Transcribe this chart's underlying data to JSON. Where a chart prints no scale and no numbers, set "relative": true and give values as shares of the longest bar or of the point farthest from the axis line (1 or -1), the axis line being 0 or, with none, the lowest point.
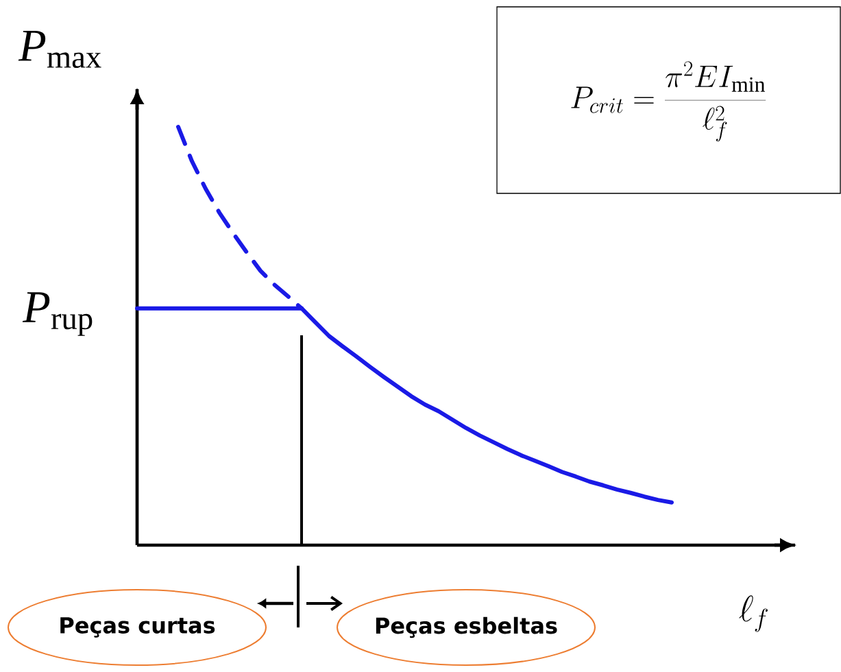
{
  "chart_data": {
    "type": "line",
    "relative": true,
    "categories": [
      null,
      null,
      null,
      null,
      null,
      null,
      null,
      null,
      null,
      null,
      null,
      null,
      null,
      null,
      null,
      null,
      null,
      null,
      null,
      null,
      null,
      null,
      null,
      null,
      null,
      null,
      null,
      null,
      null,
      null,
      null,
      null,
      null,
      null,
      null,
      null,
      null,
      null,
      null,
      null,
      null,
      null,
      null,
      null,
      null,
      null,
      null,
      null,
      null
    ],
    "ylabel": "*P*$_{max}$",
    "series": [
      {
        "color": "#1a1ae6",
        "line_style": "dashed",
        "values": [
          null,
          null,
          null,
          1,
          0.918,
          0.852,
          0.795,
          0.746,
          0.7,
          0.656,
          0.623,
          0.595,
          0.566,
          null,
          null,
          null,
          null,
          null,
          null,
          null,
          null,
          null,
          null,
          null,
          null,
          null,
          null,
          null,
          null,
          null,
          null,
          null,
          null,
          null,
          null,
          null,
          null,
          null,
          null,
          null,
          null,
          null,
          null,
          null,
          null,
          null,
          null,
          null,
          null
        ]
      },
      {
        "color": "#1a1ae6",
        "line_style": "solid",
        "values": [
          0.566,
          0.566,
          0.566,
          0.566,
          0.566,
          0.566,
          0.566,
          0.566,
          0.566,
          0.566,
          0.566,
          0.566,
          0.566,
          null,
          null,
          null,
          null,
          null,
          null,
          null,
          null,
          null,
          null,
          null,
          null,
          null,
          null,
          null,
          null,
          null,
          null,
          null,
          null,
          null,
          null,
          null,
          null,
          null,
          null,
          null,
          null,
          null,
          null,
          null,
          null,
          null,
          null,
          null,
          null
        ]
      },
      {
        "color": "#1a1ae6",
        "line_style": "solid",
        "values": [
          null,
          null,
          null,
          null,
          null,
          null,
          null,
          null,
          null,
          null,
          null,
          null,
          0.566,
          0.533,
          0.5,
          0.475,
          0.451,
          0.426,
          0.402,
          0.379,
          0.356,
          0.336,
          0.32,
          0.3,
          0.28,
          0.262,
          0.246,
          0.23,
          0.215,
          0.202,
          0.189,
          0.175,
          0.164,
          0.152,
          0.143,
          0.133,
          0.125,
          0.116,
          0.108,
          0.102,
          null,
          null,
          null,
          null,
          null,
          null,
          null,
          null,
          null
        ]
      }
    ],
    "annotations": [
      "P_{crit} = \\frac{\\pi^2 EI_{\\min}}{\\ell_f^2}",
      "\\ell_f",
      "*P*$_{rup}$",
      "Peças curtas",
      "Peças esbeltas"
    ]
  }
}
